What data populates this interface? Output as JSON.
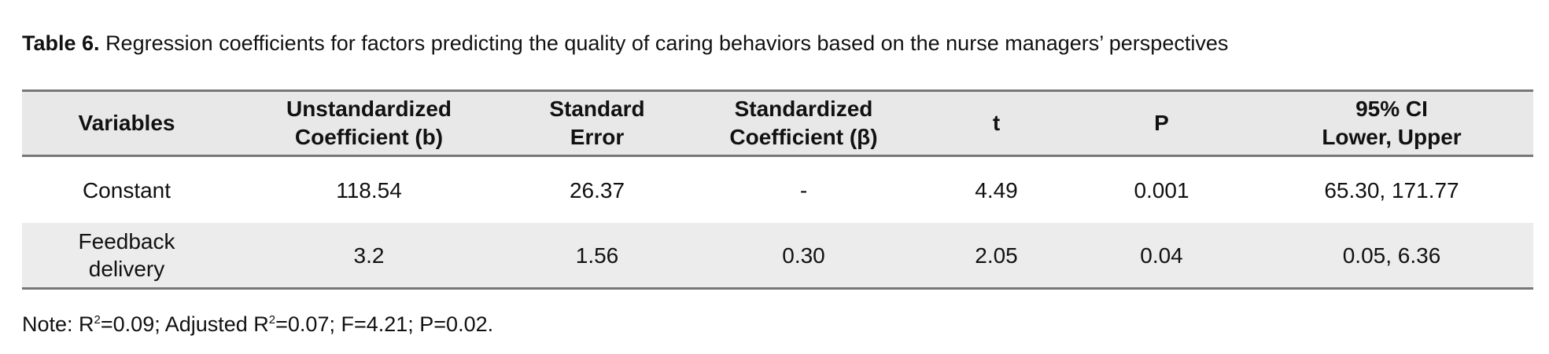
{
  "caption": {
    "label": "Table 6.",
    "text": "Regression coefficients for factors predicting the quality of caring behaviors based on the nurse managers’ perspectives"
  },
  "table": {
    "headers": [
      [
        "Variables"
      ],
      [
        "Unstandardized",
        "Coefficient (b)"
      ],
      [
        "Standard",
        "Error"
      ],
      [
        "Standardized",
        "Coefficient (β)"
      ],
      [
        "t"
      ],
      [
        "P"
      ],
      [
        "95% CI",
        "Lower, Upper"
      ]
    ],
    "rows": [
      [
        "Constant",
        "118.54",
        "26.37",
        "-",
        "4.49",
        "0.001",
        "65.30, 171.77"
      ],
      [
        "Feedback delivery",
        "3.2",
        "1.56",
        "0.30",
        "2.05",
        "0.04",
        "0.05, 6.36"
      ]
    ]
  },
  "note": [
    "Note: R",
    "2",
    "=0.09; Adjusted R",
    "2",
    "=0.07; F=4.21; P=0.02."
  ]
}
